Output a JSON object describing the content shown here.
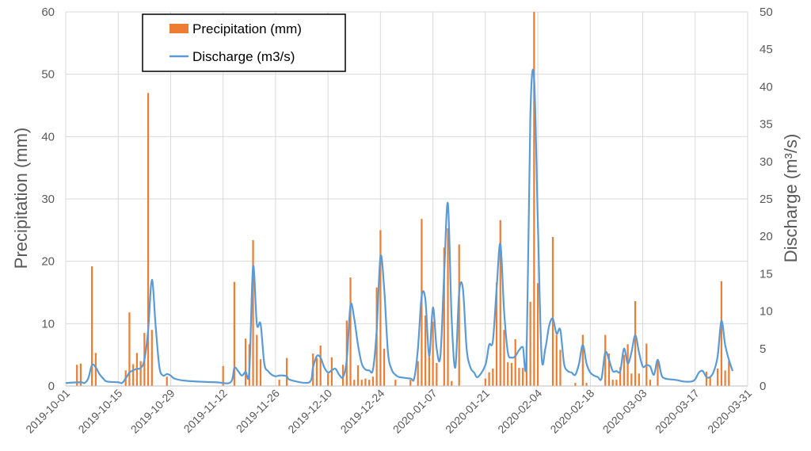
{
  "chart_data": {
    "type": "bar+line",
    "title": "",
    "x_start": "2019-10-01",
    "x_end": "2020-03-31",
    "xtick_labels": [
      "2019-10-01",
      "2019-10-15",
      "2019-10-29",
      "2019-11-12",
      "2019-11-26",
      "2019-12-10",
      "2019-12-24",
      "2020-01-07",
      "2020-01-21",
      "2020-02-04",
      "2020-02-18",
      "2020-03-03",
      "2020-03-17",
      "2020-03-31"
    ],
    "y_left": {
      "label": "Precipitation (mm)",
      "min": 0,
      "max": 60,
      "ticks": [
        "0",
        "10",
        "20",
        "30",
        "40",
        "50",
        "60"
      ]
    },
    "y_right": {
      "label": "Discharge (m³/s)",
      "min": 0,
      "max": 50,
      "ticks": [
        "0",
        "5",
        "10",
        "15",
        "20",
        "25",
        "30",
        "35",
        "40",
        "45",
        "50"
      ]
    },
    "legend": {
      "position": "top-left",
      "entries": [
        "Precipitation (mm)",
        "Discharge (m3/s)"
      ]
    },
    "colors": {
      "precipitation": "#ed7d31",
      "discharge": "#5b9bd5",
      "grid": "#d9d9d9",
      "axis_text": "#595959"
    },
    "series": [
      {
        "name": "Precipitation (mm)",
        "kind": "bar",
        "axis": "left",
        "points": [
          {
            "day": 3,
            "v": 3.4
          },
          {
            "day": 4,
            "v": 3.6
          },
          {
            "day": 7,
            "v": 19.2
          },
          {
            "day": 8,
            "v": 5.3
          },
          {
            "day": 16,
            "v": 2.5
          },
          {
            "day": 17,
            "v": 11.8
          },
          {
            "day": 18,
            "v": 3.5
          },
          {
            "day": 19,
            "v": 5.3
          },
          {
            "day": 20,
            "v": 4.0
          },
          {
            "day": 21,
            "v": 8.5
          },
          {
            "day": 22,
            "v": 47.0
          },
          {
            "day": 23,
            "v": 9.0
          },
          {
            "day": 27,
            "v": 1.5
          },
          {
            "day": 42,
            "v": 3.2
          },
          {
            "day": 45,
            "v": 16.7
          },
          {
            "day": 48,
            "v": 7.6
          },
          {
            "day": 49,
            "v": 6.7
          },
          {
            "day": 50,
            "v": 23.4
          },
          {
            "day": 51,
            "v": 8.2
          },
          {
            "day": 52,
            "v": 4.3
          },
          {
            "day": 57,
            "v": 1.0
          },
          {
            "day": 59,
            "v": 4.5
          },
          {
            "day": 66,
            "v": 5.2
          },
          {
            "day": 67,
            "v": 4.5
          },
          {
            "day": 68,
            "v": 6.5
          },
          {
            "day": 70,
            "v": 2.0
          },
          {
            "day": 71,
            "v": 4.6
          },
          {
            "day": 74,
            "v": 3.4
          },
          {
            "day": 75,
            "v": 10.5
          },
          {
            "day": 76,
            "v": 17.4
          },
          {
            "day": 77,
            "v": 1.0
          },
          {
            "day": 78,
            "v": 3.3
          },
          {
            "day": 79,
            "v": 1.0
          },
          {
            "day": 80,
            "v": 1.2
          },
          {
            "day": 81,
            "v": 1.0
          },
          {
            "day": 82,
            "v": 1.5
          },
          {
            "day": 83,
            "v": 15.8
          },
          {
            "day": 84,
            "v": 25.0
          },
          {
            "day": 85,
            "v": 6.0
          },
          {
            "day": 88,
            "v": 1.0
          },
          {
            "day": 92,
            "v": 1.0
          },
          {
            "day": 94,
            "v": 4.0
          },
          {
            "day": 95,
            "v": 26.8
          },
          {
            "day": 96,
            "v": 11.3
          },
          {
            "day": 97,
            "v": 5.8
          },
          {
            "day": 98,
            "v": 10.3
          },
          {
            "day": 99,
            "v": 3.7
          },
          {
            "day": 101,
            "v": 22.2
          },
          {
            "day": 102,
            "v": 25.3
          },
          {
            "day": 103,
            "v": 0.8
          },
          {
            "day": 105,
            "v": 22.7
          },
          {
            "day": 112,
            "v": 1.2
          },
          {
            "day": 113,
            "v": 2.2
          },
          {
            "day": 114,
            "v": 2.8
          },
          {
            "day": 115,
            "v": 16.6
          },
          {
            "day": 116,
            "v": 26.6
          },
          {
            "day": 117,
            "v": 9.0
          },
          {
            "day": 118,
            "v": 3.8
          },
          {
            "day": 119,
            "v": 3.7
          },
          {
            "day": 120,
            "v": 7.5
          },
          {
            "day": 121,
            "v": 2.9
          },
          {
            "day": 122,
            "v": 2.9
          },
          {
            "day": 123,
            "v": 7.2
          },
          {
            "day": 124,
            "v": 13.5
          },
          {
            "day": 125,
            "v": 60.0
          },
          {
            "day": 126,
            "v": 16.5
          },
          {
            "day": 130,
            "v": 23.9
          },
          {
            "day": 131,
            "v": 8.2
          },
          {
            "day": 132,
            "v": 5.8
          },
          {
            "day": 136,
            "v": 0.5
          },
          {
            "day": 138,
            "v": 8.2
          },
          {
            "day": 139,
            "v": 0.5
          },
          {
            "day": 144,
            "v": 8.2
          },
          {
            "day": 145,
            "v": 5.2
          },
          {
            "day": 146,
            "v": 1.0
          },
          {
            "day": 147,
            "v": 1.0
          },
          {
            "day": 148,
            "v": 3.0
          },
          {
            "day": 149,
            "v": 5.0
          },
          {
            "day": 150,
            "v": 6.7
          },
          {
            "day": 151,
            "v": 2.0
          },
          {
            "day": 152,
            "v": 13.6
          },
          {
            "day": 153,
            "v": 2.0
          },
          {
            "day": 155,
            "v": 6.8
          },
          {
            "day": 156,
            "v": 1.0
          },
          {
            "day": 158,
            "v": 4.3
          },
          {
            "day": 171,
            "v": 2.3
          },
          {
            "day": 172,
            "v": 1.5
          },
          {
            "day": 174,
            "v": 2.8
          },
          {
            "day": 175,
            "v": 16.8
          },
          {
            "day": 176,
            "v": 2.5
          },
          {
            "day": 177,
            "v": 4.0
          }
        ]
      },
      {
        "name": "Discharge (m3/s)",
        "kind": "line",
        "axis": "right",
        "points": [
          {
            "day": 0,
            "v": 0.4
          },
          {
            "day": 4,
            "v": 0.5
          },
          {
            "day": 5,
            "v": 0.4
          },
          {
            "day": 6,
            "v": 1.0
          },
          {
            "day": 7,
            "v": 2.8
          },
          {
            "day": 8,
            "v": 2.5
          },
          {
            "day": 9,
            "v": 1.6
          },
          {
            "day": 10,
            "v": 1.0
          },
          {
            "day": 11,
            "v": 0.6
          },
          {
            "day": 14,
            "v": 0.5
          },
          {
            "day": 15,
            "v": 0.4
          },
          {
            "day": 16,
            "v": 1.0
          },
          {
            "day": 17,
            "v": 1.8
          },
          {
            "day": 18,
            "v": 2.1
          },
          {
            "day": 19,
            "v": 2.3
          },
          {
            "day": 20,
            "v": 2.4
          },
          {
            "day": 21,
            "v": 3.5
          },
          {
            "day": 22,
            "v": 7.5
          },
          {
            "day": 23,
            "v": 14.2
          },
          {
            "day": 24,
            "v": 8.0
          },
          {
            "day": 25,
            "v": 2.5
          },
          {
            "day": 26,
            "v": 1.4
          },
          {
            "day": 27,
            "v": 1.6
          },
          {
            "day": 28,
            "v": 1.4
          },
          {
            "day": 29,
            "v": 1.0
          },
          {
            "day": 32,
            "v": 0.7
          },
          {
            "day": 40,
            "v": 0.5
          },
          {
            "day": 44,
            "v": 0.5
          },
          {
            "day": 45,
            "v": 2.4
          },
          {
            "day": 46,
            "v": 2.0
          },
          {
            "day": 47,
            "v": 1.4
          },
          {
            "day": 48,
            "v": 1.9
          },
          {
            "day": 49,
            "v": 2.0
          },
          {
            "day": 50,
            "v": 16.0
          },
          {
            "day": 51,
            "v": 8.3
          },
          {
            "day": 52,
            "v": 8.3
          },
          {
            "day": 53,
            "v": 3.0
          },
          {
            "day": 54,
            "v": 2.0
          },
          {
            "day": 55,
            "v": 1.5
          },
          {
            "day": 56,
            "v": 1.3
          },
          {
            "day": 57,
            "v": 1.4
          },
          {
            "day": 58,
            "v": 1.4
          },
          {
            "day": 59,
            "v": 1.3
          },
          {
            "day": 60,
            "v": 0.8
          },
          {
            "day": 65,
            "v": 0.5
          },
          {
            "day": 66,
            "v": 2.5
          },
          {
            "day": 67,
            "v": 4.0
          },
          {
            "day": 68,
            "v": 3.8
          },
          {
            "day": 69,
            "v": 2.5
          },
          {
            "day": 70,
            "v": 1.8
          },
          {
            "day": 71,
            "v": 2.1
          },
          {
            "day": 72,
            "v": 2.3
          },
          {
            "day": 73,
            "v": 1.5
          },
          {
            "day": 74,
            "v": 1.2
          },
          {
            "day": 75,
            "v": 3.5
          },
          {
            "day": 76,
            "v": 10.8
          },
          {
            "day": 77,
            "v": 9.0
          },
          {
            "day": 78,
            "v": 5.5
          },
          {
            "day": 79,
            "v": 3.0
          },
          {
            "day": 80,
            "v": 2.2
          },
          {
            "day": 81,
            "v": 2.1
          },
          {
            "day": 82,
            "v": 2.2
          },
          {
            "day": 83,
            "v": 7.5
          },
          {
            "day": 84,
            "v": 17.3
          },
          {
            "day": 85,
            "v": 13.0
          },
          {
            "day": 86,
            "v": 4.5
          },
          {
            "day": 87,
            "v": 2.2
          },
          {
            "day": 88,
            "v": 1.5
          },
          {
            "day": 89,
            "v": 1.2
          },
          {
            "day": 92,
            "v": 1.0
          },
          {
            "day": 93,
            "v": 1.0
          },
          {
            "day": 94,
            "v": 5.0
          },
          {
            "day": 95,
            "v": 12.0
          },
          {
            "day": 96,
            "v": 11.5
          },
          {
            "day": 97,
            "v": 4.0
          },
          {
            "day": 98,
            "v": 10.5
          },
          {
            "day": 99,
            "v": 5.0
          },
          {
            "day": 100,
            "v": 4.0
          },
          {
            "day": 101,
            "v": 15.0
          },
          {
            "day": 102,
            "v": 24.4
          },
          {
            "day": 103,
            "v": 9.0
          },
          {
            "day": 104,
            "v": 2.5
          },
          {
            "day": 105,
            "v": 12.5
          },
          {
            "day": 106,
            "v": 13.0
          },
          {
            "day": 107,
            "v": 5.0
          },
          {
            "day": 108,
            "v": 2.5
          },
          {
            "day": 109,
            "v": 1.8
          },
          {
            "day": 110,
            "v": 1.2
          },
          {
            "day": 112,
            "v": 2.8
          },
          {
            "day": 113,
            "v": 5.5
          },
          {
            "day": 114,
            "v": 6.0
          },
          {
            "day": 115,
            "v": 13.0
          },
          {
            "day": 116,
            "v": 19.0
          },
          {
            "day": 117,
            "v": 10.0
          },
          {
            "day": 118,
            "v": 4.5
          },
          {
            "day": 119,
            "v": 3.8
          },
          {
            "day": 120,
            "v": 4.0
          },
          {
            "day": 121,
            "v": 4.8
          },
          {
            "day": 122,
            "v": 5.2
          },
          {
            "day": 123,
            "v": 4.0
          },
          {
            "day": 124,
            "v": 36.0
          },
          {
            "day": 125,
            "v": 41.2
          },
          {
            "day": 126,
            "v": 22.0
          },
          {
            "day": 127,
            "v": 4.0
          },
          {
            "day": 128,
            "v": 5.0
          },
          {
            "day": 129,
            "v": 8.0
          },
          {
            "day": 130,
            "v": 9.0
          },
          {
            "day": 131,
            "v": 7.0
          },
          {
            "day": 132,
            "v": 7.5
          },
          {
            "day": 133,
            "v": 3.0
          },
          {
            "day": 134,
            "v": 2.0
          },
          {
            "day": 135,
            "v": 1.8
          },
          {
            "day": 136,
            "v": 1.5
          },
          {
            "day": 137,
            "v": 3.0
          },
          {
            "day": 138,
            "v": 5.5
          },
          {
            "day": 139,
            "v": 3.0
          },
          {
            "day": 140,
            "v": 1.8
          },
          {
            "day": 141,
            "v": 1.4
          },
          {
            "day": 142,
            "v": 1.2
          },
          {
            "day": 143,
            "v": 1.0
          },
          {
            "day": 144,
            "v": 4.5
          },
          {
            "day": 145,
            "v": 3.5
          },
          {
            "day": 146,
            "v": 2.0
          },
          {
            "day": 147,
            "v": 2.0
          },
          {
            "day": 148,
            "v": 2.0
          },
          {
            "day": 149,
            "v": 5.0
          },
          {
            "day": 150,
            "v": 3.0
          },
          {
            "day": 151,
            "v": 4.5
          },
          {
            "day": 152,
            "v": 6.8
          },
          {
            "day": 153,
            "v": 4.5
          },
          {
            "day": 154,
            "v": 2.6
          },
          {
            "day": 155,
            "v": 2.8
          },
          {
            "day": 156,
            "v": 2.6
          },
          {
            "day": 157,
            "v": 1.5
          },
          {
            "day": 158,
            "v": 3.5
          },
          {
            "day": 159,
            "v": 1.5
          },
          {
            "day": 160,
            "v": 1.0
          },
          {
            "day": 163,
            "v": 0.8
          },
          {
            "day": 165,
            "v": 0.6
          },
          {
            "day": 167,
            "v": 0.6
          },
          {
            "day": 168,
            "v": 0.9
          },
          {
            "day": 169,
            "v": 1.8
          },
          {
            "day": 170,
            "v": 2.0
          },
          {
            "day": 171,
            "v": 1.2
          },
          {
            "day": 172,
            "v": 1.2
          },
          {
            "day": 173,
            "v": 2.0
          },
          {
            "day": 174,
            "v": 4.0
          },
          {
            "day": 175,
            "v": 8.7
          },
          {
            "day": 176,
            "v": 5.5
          },
          {
            "day": 177,
            "v": 3.5
          },
          {
            "day": 178,
            "v": 2.0
          }
        ]
      }
    ]
  }
}
